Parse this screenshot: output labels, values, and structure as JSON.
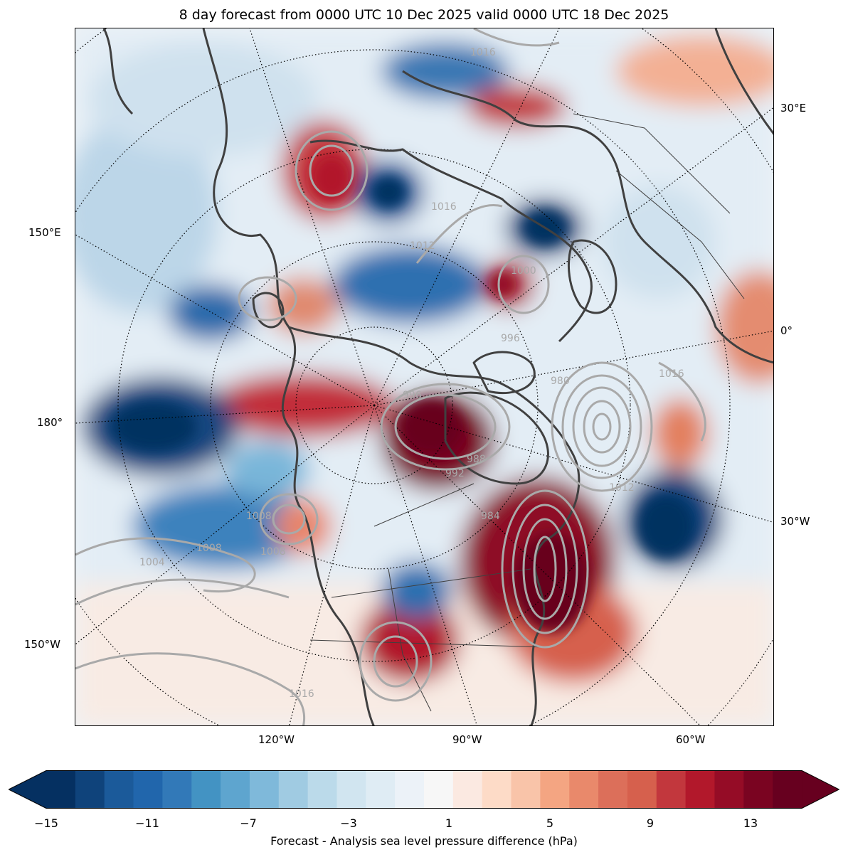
{
  "title": "8 day forecast from 0000 UTC 10 Dec 2025 valid 0000 UTC 18 Dec 2025",
  "map": {
    "projection": "north-polar-stereographic",
    "field": "sea level pressure difference (forecast - analysis)",
    "contour_color": "#a9a9a9",
    "coast_color": "#404040",
    "longitude_labels": [
      "30°E",
      "150°E",
      "0°",
      "180°",
      "30°W",
      "150°W",
      "120°W",
      "90°W",
      "60°W"
    ],
    "pressure_contour_labels": [
      "1016",
      "1016",
      "1012",
      "1008",
      "1008",
      "1004",
      "1000",
      "996",
      "996",
      "992",
      "988",
      "984",
      "980",
      "1008",
      "1016",
      "1016",
      "1012"
    ]
  },
  "colorbar": {
    "label": "Forecast - Analysis sea level pressure difference (hPa)",
    "ticks": [
      "−15",
      "−11",
      "−7",
      "−3",
      "1",
      "5",
      "9",
      "13"
    ],
    "colors": [
      "#053061",
      "#0f437b",
      "#1b5a9a",
      "#2166ac",
      "#3279b8",
      "#4393c3",
      "#5ea5cf",
      "#7fb9da",
      "#a0cbe2",
      "#bbdaea",
      "#d1e5f0",
      "#dfecf4",
      "#ecf2f8",
      "#f7f7f7",
      "#fbe9e1",
      "#fddbc7",
      "#f9c4a9",
      "#f4a582",
      "#e9896b",
      "#dc6f5a",
      "#d6604d",
      "#c2373d",
      "#b2182b",
      "#950c26",
      "#7a0421",
      "#67001f"
    ],
    "min_color": "#053061",
    "max_color": "#67001f"
  }
}
